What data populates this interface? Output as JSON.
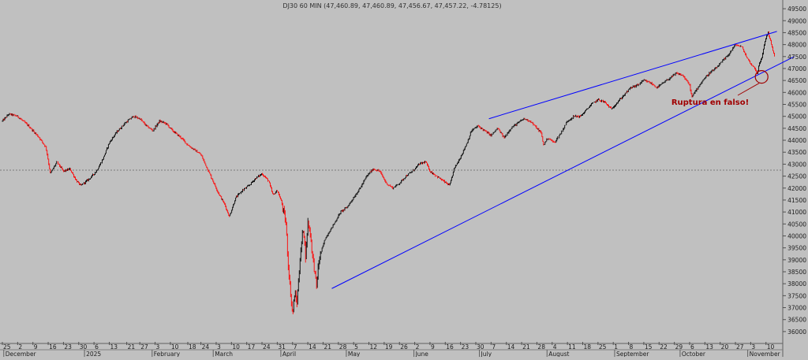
{
  "header": {
    "title": "DJ30 60 MIN (47,460.89, 47,460.89, 47,456.67, 47,457.22, -4.78125)"
  },
  "annotation": {
    "text": "Ruptura en falso!",
    "color": "#a00000"
  },
  "colors": {
    "background": "#c0c0c0",
    "up_bar": "#000000",
    "down_bar": "#ff0000",
    "trendline": "#0000ff",
    "circle": "#a00000"
  },
  "chart_data": {
    "type": "line",
    "subtype": "ohlc-bars",
    "ylim": [
      35700,
      49700
    ],
    "y_ticks": [
      36000,
      36500,
      37000,
      37500,
      38000,
      38500,
      39000,
      39500,
      40000,
      40500,
      41000,
      41500,
      42000,
      42500,
      43000,
      43500,
      44000,
      44500,
      45000,
      45500,
      46000,
      46500,
      47000,
      47500,
      48000,
      48500,
      49000,
      49500
    ],
    "x_ticks": [
      {
        "label": "25",
        "day": 0
      },
      {
        "label": "2",
        "day": 7
      },
      {
        "label": "9",
        "day": 14
      },
      {
        "label": "16",
        "day": 21
      },
      {
        "label": "23",
        "day": 28
      },
      {
        "label": "30",
        "day": 35
      },
      {
        "label": "6",
        "day": 42
      },
      {
        "label": "13",
        "day": 49
      },
      {
        "label": "21",
        "day": 57
      },
      {
        "label": "27",
        "day": 63
      },
      {
        "label": "3",
        "day": 70
      },
      {
        "label": "10",
        "day": 77
      },
      {
        "label": "18",
        "day": 85
      },
      {
        "label": "24",
        "day": 91
      },
      {
        "label": "3",
        "day": 98
      },
      {
        "label": "10",
        "day": 105
      },
      {
        "label": "17",
        "day": 112
      },
      {
        "label": "24",
        "day": 119
      },
      {
        "label": "31",
        "day": 126
      },
      {
        "label": "7",
        "day": 133
      },
      {
        "label": "14",
        "day": 140
      },
      {
        "label": "21",
        "day": 147
      },
      {
        "label": "28",
        "day": 154
      },
      {
        "label": "5",
        "day": 161
      },
      {
        "label": "12",
        "day": 168
      },
      {
        "label": "19",
        "day": 175
      },
      {
        "label": "26",
        "day": 182
      },
      {
        "label": "2",
        "day": 189
      },
      {
        "label": "9",
        "day": 196
      },
      {
        "label": "16",
        "day": 203
      },
      {
        "label": "23",
        "day": 210
      },
      {
        "label": "30",
        "day": 217
      },
      {
        "label": "7",
        "day": 224
      },
      {
        "label": "14",
        "day": 231
      },
      {
        "label": "21",
        "day": 238
      },
      {
        "label": "28",
        "day": 245
      },
      {
        "label": "4",
        "day": 252
      },
      {
        "label": "11",
        "day": 259
      },
      {
        "label": "18",
        "day": 266
      },
      {
        "label": "25",
        "day": 273
      },
      {
        "label": "1",
        "day": 280
      },
      {
        "label": "8",
        "day": 287
      },
      {
        "label": "15",
        "day": 294
      },
      {
        "label": "22",
        "day": 301
      },
      {
        "label": "29",
        "day": 308
      },
      {
        "label": "6",
        "day": 315
      },
      {
        "label": "13",
        "day": 322
      },
      {
        "label": "20",
        "day": 329
      },
      {
        "label": "27",
        "day": 336
      },
      {
        "label": "3",
        "day": 343
      },
      {
        "label": "10",
        "day": 350
      }
    ],
    "month_labels": [
      {
        "label": "December",
        "day": 1
      },
      {
        "label": "2025",
        "day": 38
      },
      {
        "label": "February",
        "day": 69
      },
      {
        "label": "March",
        "day": 97
      },
      {
        "label": "April",
        "day": 128
      },
      {
        "label": "May",
        "day": 158
      },
      {
        "label": "June",
        "day": 189
      },
      {
        "label": "July",
        "day": 219
      },
      {
        "label": "August",
        "day": 250
      },
      {
        "label": "September",
        "day": 281
      },
      {
        "label": "October",
        "day": 311
      },
      {
        "label": "November",
        "day": 342
      }
    ],
    "price_path": [
      [
        0,
        44800
      ],
      [
        3,
        45100
      ],
      [
        7,
        45000
      ],
      [
        12,
        44600
      ],
      [
        17,
        44100
      ],
      [
        20,
        43700
      ],
      [
        22,
        42600
      ],
      [
        25,
        43100
      ],
      [
        28,
        42700
      ],
      [
        31,
        42800
      ],
      [
        34,
        42300
      ],
      [
        36,
        42100
      ],
      [
        40,
        42400
      ],
      [
        43,
        42700
      ],
      [
        46,
        43200
      ],
      [
        49,
        43900
      ],
      [
        52,
        44300
      ],
      [
        56,
        44700
      ],
      [
        60,
        45000
      ],
      [
        63,
        44900
      ],
      [
        66,
        44600
      ],
      [
        69,
        44400
      ],
      [
        72,
        44800
      ],
      [
        75,
        44700
      ],
      [
        78,
        44400
      ],
      [
        82,
        44100
      ],
      [
        85,
        43800
      ],
      [
        88,
        43600
      ],
      [
        91,
        43400
      ],
      [
        94,
        42800
      ],
      [
        96,
        42400
      ],
      [
        99,
        41800
      ],
      [
        102,
        41300
      ],
      [
        104,
        40800
      ],
      [
        107,
        41600
      ],
      [
        110,
        41900
      ],
      [
        113,
        42100
      ],
      [
        116,
        42400
      ],
      [
        119,
        42600
      ],
      [
        122,
        42300
      ],
      [
        124,
        41700
      ],
      [
        126,
        41900
      ],
      [
        128,
        41400
      ],
      [
        130,
        40500
      ],
      [
        131,
        38800
      ],
      [
        132,
        37700
      ],
      [
        133,
        36700
      ],
      [
        134,
        37600
      ],
      [
        135,
        37200
      ],
      [
        136,
        38500
      ],
      [
        137,
        39600
      ],
      [
        138,
        40400
      ],
      [
        139,
        39100
      ],
      [
        140,
        40600
      ],
      [
        141,
        40200
      ],
      [
        142,
        39300
      ],
      [
        143,
        38600
      ],
      [
        144,
        37900
      ],
      [
        145,
        38900
      ],
      [
        146,
        39300
      ],
      [
        148,
        39900
      ],
      [
        150,
        40200
      ],
      [
        152,
        40500
      ],
      [
        155,
        41000
      ],
      [
        158,
        41200
      ],
      [
        161,
        41600
      ],
      [
        164,
        42000
      ],
      [
        167,
        42500
      ],
      [
        170,
        42800
      ],
      [
        173,
        42700
      ],
      [
        176,
        42200
      ],
      [
        179,
        42000
      ],
      [
        182,
        42200
      ],
      [
        185,
        42500
      ],
      [
        188,
        42700
      ],
      [
        191,
        43000
      ],
      [
        194,
        43100
      ],
      [
        196,
        42700
      ],
      [
        199,
        42500
      ],
      [
        202,
        42300
      ],
      [
        205,
        42100
      ],
      [
        207,
        42800
      ],
      [
        210,
        43300
      ],
      [
        213,
        43900
      ],
      [
        215,
        44400
      ],
      [
        218,
        44600
      ],
      [
        221,
        44400
      ],
      [
        224,
        44200
      ],
      [
        227,
        44500
      ],
      [
        230,
        44100
      ],
      [
        233,
        44500
      ],
      [
        236,
        44700
      ],
      [
        239,
        44900
      ],
      [
        242,
        44800
      ],
      [
        245,
        44500
      ],
      [
        247,
        44300
      ],
      [
        248,
        43800
      ],
      [
        250,
        44100
      ],
      [
        253,
        43900
      ],
      [
        256,
        44300
      ],
      [
        259,
        44800
      ],
      [
        262,
        45000
      ],
      [
        265,
        45000
      ],
      [
        268,
        45300
      ],
      [
        270,
        45500
      ],
      [
        273,
        45700
      ],
      [
        276,
        45600
      ],
      [
        279,
        45300
      ],
      [
        282,
        45600
      ],
      [
        285,
        45900
      ],
      [
        288,
        46200
      ],
      [
        291,
        46300
      ],
      [
        294,
        46500
      ],
      [
        297,
        46400
      ],
      [
        300,
        46200
      ],
      [
        303,
        46400
      ],
      [
        306,
        46600
      ],
      [
        309,
        46800
      ],
      [
        312,
        46700
      ],
      [
        315,
        46300
      ],
      [
        316,
        45800
      ],
      [
        318,
        46100
      ],
      [
        321,
        46500
      ],
      [
        324,
        46800
      ],
      [
        327,
        47000
      ],
      [
        330,
        47300
      ],
      [
        333,
        47600
      ],
      [
        336,
        48000
      ],
      [
        339,
        47900
      ],
      [
        341,
        47500
      ],
      [
        343,
        47200
      ],
      [
        345,
        47000
      ],
      [
        346,
        46800
      ],
      [
        347,
        47200
      ],
      [
        348,
        47400
      ],
      [
        349,
        47900
      ],
      [
        350,
        48300
      ],
      [
        351,
        48500
      ],
      [
        352,
        48200
      ],
      [
        353,
        47800
      ],
      [
        354,
        47460
      ]
    ],
    "trendlines": [
      {
        "from": [
          223,
          44900
        ],
        "to": [
          355,
          48550
        ]
      },
      {
        "from": [
          151,
          37800
        ],
        "to": [
          363,
          47500
        ]
      }
    ],
    "reference_level": 42750,
    "circle_marker": {
      "day": 348,
      "price": 46650
    }
  }
}
